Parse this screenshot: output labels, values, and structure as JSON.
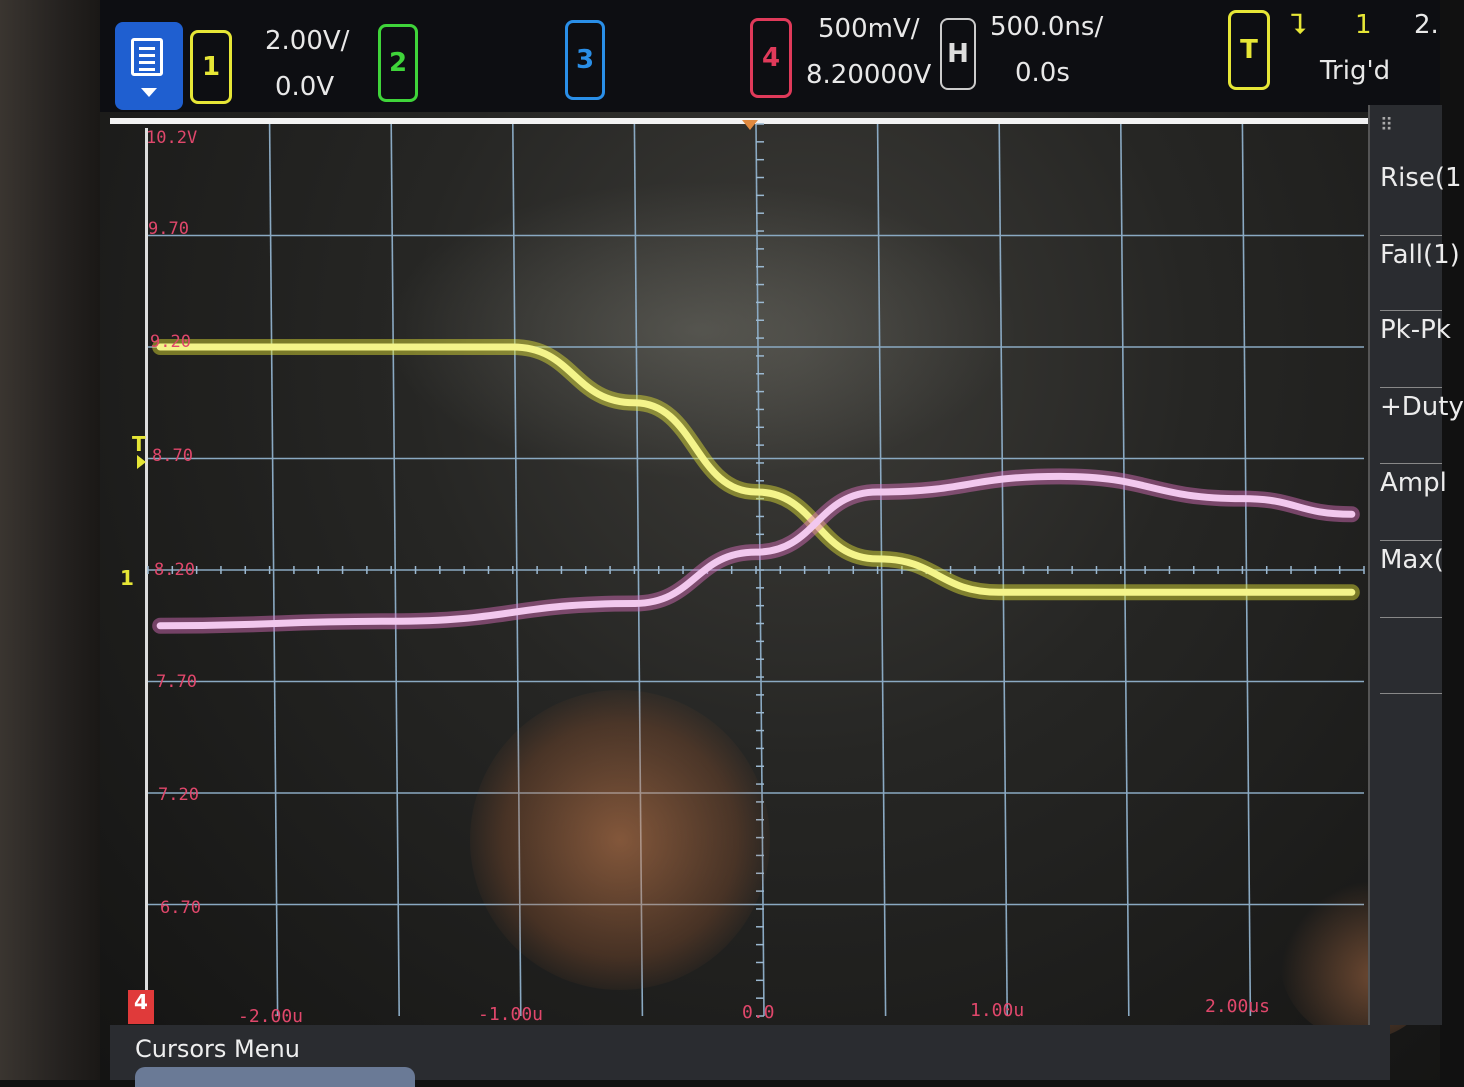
{
  "channels": {
    "ch1": {
      "label": "1",
      "scale": "2.00V/",
      "offset": "0.0V",
      "color": "#e6e636"
    },
    "ch2": {
      "label": "2",
      "color": "#3fd43a"
    },
    "ch3": {
      "label": "3",
      "color": "#2a8fe8"
    },
    "ch4": {
      "label": "4",
      "scale": "500mV/",
      "offset": "8.20000V",
      "color": "#e03a5a"
    }
  },
  "horizontal": {
    "label": "H",
    "scale": "500.0ns/",
    "position": "0.0s"
  },
  "trigger": {
    "label": "T",
    "source": "1",
    "status": "Trig'd",
    "level_partial": "2."
  },
  "y_axis_labels": [
    "10.2V",
    "9.70",
    "9.20",
    "8.70",
    "8.20",
    "7.70",
    "7.20",
    "6.70"
  ],
  "x_axis_labels": [
    "-2.00u",
    "-1.00u",
    "0.0",
    "1.00u",
    "2.00us"
  ],
  "measurements": [
    "Rise(1",
    "Fall(1)",
    "Pk-Pk",
    "+Duty",
    "Ampl",
    "Max("
  ],
  "ground_marker": "1",
  "ch4_marker": "4",
  "trigger_marker": "T",
  "bottom_menu": {
    "title": "Cursors Menu"
  },
  "chart_data": {
    "type": "line",
    "x_unit": "s",
    "series": [
      {
        "name": "1",
        "color": "#e6e636",
        "x": [
          -2.45e-06,
          -1e-06,
          -5e-07,
          0.0,
          5e-07,
          1e-06,
          2.45e-06
        ],
        "y": [
          9.2,
          9.2,
          8.95,
          8.55,
          8.25,
          8.1,
          8.1
        ]
      },
      {
        "name": "4",
        "color": "#e070c0",
        "x": [
          -2.45e-06,
          -1.5e-06,
          -5e-07,
          0.0,
          5e-07,
          1.25e-06,
          2e-06,
          2.45e-06
        ],
        "y": [
          7.95,
          7.97,
          8.05,
          8.28,
          8.55,
          8.62,
          8.52,
          8.45
        ]
      }
    ]
  }
}
